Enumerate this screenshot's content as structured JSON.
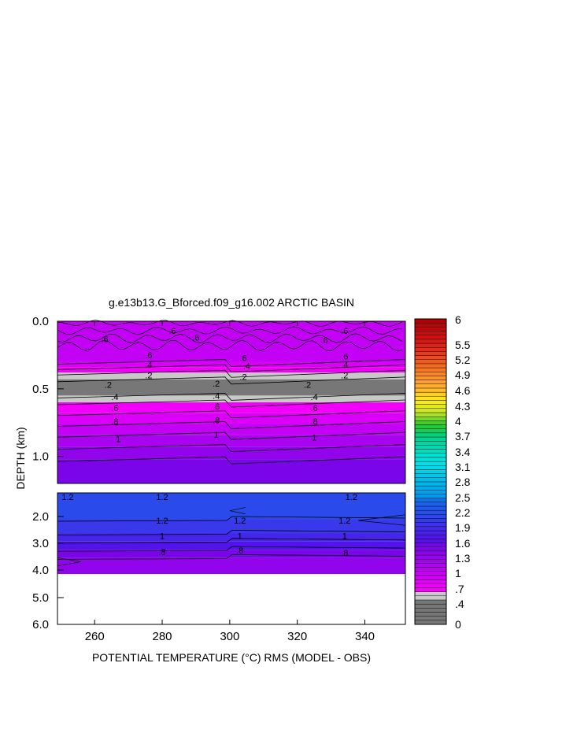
{
  "chart_data": {
    "type": "contour",
    "title": "g.e13b13.G_Bforced.f09_g16.002 ARCTIC BASIN",
    "xlabel": "POTENTIAL TEMPERATURE (°C) RMS (MODEL - OBS)",
    "ylabel": "DEPTH (km)",
    "xlim": [
      249,
      352
    ],
    "x_ticks": [
      260,
      280,
      300,
      320,
      340
    ],
    "upper_panel": {
      "ylim": [
        0.0,
        1.2
      ],
      "y_ticks": [
        {
          "v": 0.0,
          "label": "0.0"
        },
        {
          "v": 0.5,
          "label": "0.5"
        },
        {
          "v": 1.0,
          "label": "1.0"
        }
      ]
    },
    "lower_panel": {
      "depth_range_km": [
        1.2,
        6.0
      ],
      "y_ticks": [
        {
          "label": "2.0"
        },
        {
          "label": "3.0"
        },
        {
          "label": "4.0"
        },
        {
          "label": "5.0"
        },
        {
          "label": "6.0"
        }
      ],
      "data_max_depth_km": 4.1
    },
    "upper_bands": [
      {
        "top": 0.0,
        "bottom": 0.3,
        "value": 0.65
      },
      {
        "top": 0.3,
        "bottom": 0.34,
        "value": 0.55
      },
      {
        "top": 0.34,
        "bottom": 0.38,
        "value": 0.45
      },
      {
        "top": 0.38,
        "bottom": 0.43,
        "value": 0.35
      },
      {
        "top": 0.43,
        "bottom": 0.55,
        "value": 0.25
      },
      {
        "top": 0.55,
        "bottom": 0.6,
        "value": 0.35
      },
      {
        "top": 0.6,
        "bottom": 0.68,
        "value": 0.45
      },
      {
        "top": 0.68,
        "bottom": 0.76,
        "value": 0.55
      },
      {
        "top": 0.76,
        "bottom": 0.84,
        "value": 0.65
      },
      {
        "top": 0.84,
        "bottom": 0.93,
        "value": 0.75
      },
      {
        "top": 0.93,
        "bottom": 1.02,
        "value": 0.85
      },
      {
        "top": 1.02,
        "bottom": 1.2,
        "value": 0.95
      }
    ],
    "lower_bands": [
      {
        "top_frac": 0.0,
        "bottom_frac": 0.33,
        "value": 1.35
      },
      {
        "top_frac": 0.33,
        "bottom_frac": 0.5,
        "value": 1.25
      },
      {
        "top_frac": 0.5,
        "bottom_frac": 0.6,
        "value": 1.15
      },
      {
        "top_frac": 0.6,
        "bottom_frac": 0.7,
        "value": 1.05
      },
      {
        "top_frac": 0.7,
        "bottom_frac": 0.8,
        "value": 0.95
      },
      {
        "top_frac": 0.8,
        "bottom_frac": 1.0,
        "value": 0.85
      }
    ],
    "contour_labels": [
      {
        "x": 283,
        "d": 0.07,
        "text": ".6",
        "panel": "upper"
      },
      {
        "x": 263,
        "d": 0.13,
        "text": ".6",
        "panel": "upper"
      },
      {
        "x": 290,
        "d": 0.12,
        "text": ".6",
        "panel": "upper"
      },
      {
        "x": 328,
        "d": 0.14,
        "text": ".6",
        "panel": "upper"
      },
      {
        "x": 334,
        "d": 0.07,
        "text": ".6",
        "panel": "upper"
      },
      {
        "x": 276,
        "d": 0.25,
        "text": ".6",
        "panel": "upper"
      },
      {
        "x": 304,
        "d": 0.27,
        "text": ".6",
        "panel": "upper"
      },
      {
        "x": 334,
        "d": 0.26,
        "text": ".6",
        "panel": "upper"
      },
      {
        "x": 276,
        "d": 0.32,
        "text": ".4",
        "panel": "upper"
      },
      {
        "x": 305,
        "d": 0.33,
        "text": ".4",
        "panel": "upper"
      },
      {
        "x": 334,
        "d": 0.32,
        "text": ".4",
        "panel": "upper"
      },
      {
        "x": 276,
        "d": 0.4,
        "text": ".2",
        "panel": "upper"
      },
      {
        "x": 304,
        "d": 0.41,
        "text": ".2",
        "panel": "upper"
      },
      {
        "x": 334,
        "d": 0.4,
        "text": ".2",
        "panel": "upper"
      },
      {
        "x": 264,
        "d": 0.47,
        "text": ".2",
        "panel": "upper"
      },
      {
        "x": 296,
        "d": 0.46,
        "text": ".2",
        "panel": "upper"
      },
      {
        "x": 323,
        "d": 0.47,
        "text": ".2",
        "panel": "upper"
      },
      {
        "x": 266,
        "d": 0.56,
        "text": ".4",
        "panel": "upper"
      },
      {
        "x": 296,
        "d": 0.55,
        "text": ".4",
        "panel": "upper"
      },
      {
        "x": 325,
        "d": 0.56,
        "text": ".4",
        "panel": "upper"
      },
      {
        "x": 266,
        "d": 0.64,
        "text": ".6",
        "panel": "upper"
      },
      {
        "x": 296,
        "d": 0.63,
        "text": ".6",
        "panel": "upper"
      },
      {
        "x": 325,
        "d": 0.64,
        "text": ".6",
        "panel": "upper"
      },
      {
        "x": 266,
        "d": 0.74,
        "text": ".8",
        "panel": "upper"
      },
      {
        "x": 296,
        "d": 0.73,
        "text": ".8",
        "panel": "upper"
      },
      {
        "x": 325,
        "d": 0.74,
        "text": ".8",
        "panel": "upper"
      },
      {
        "x": 267,
        "d": 0.87,
        "text": "1",
        "panel": "upper"
      },
      {
        "x": 296,
        "d": 0.84,
        "text": "1",
        "panel": "upper"
      },
      {
        "x": 325,
        "d": 0.86,
        "text": "1",
        "panel": "upper"
      },
      {
        "x": 252,
        "f": 0.05,
        "text": "1.2",
        "panel": "lower"
      },
      {
        "x": 280,
        "f": 0.05,
        "text": "1.2",
        "panel": "lower"
      },
      {
        "x": 336,
        "f": 0.05,
        "text": "1.2",
        "panel": "lower"
      },
      {
        "x": 280,
        "f": 0.34,
        "text": "1.2",
        "panel": "lower"
      },
      {
        "x": 303,
        "f": 0.34,
        "text": "1.2",
        "panel": "lower"
      },
      {
        "x": 334,
        "f": 0.34,
        "text": "1.2",
        "panel": "lower"
      },
      {
        "x": 280,
        "f": 0.53,
        "text": "1",
        "panel": "lower"
      },
      {
        "x": 303,
        "f": 0.53,
        "text": "1",
        "panel": "lower"
      },
      {
        "x": 334,
        "f": 0.53,
        "text": "1",
        "panel": "lower"
      },
      {
        "x": 280,
        "f": 0.73,
        "text": ".8",
        "panel": "lower"
      },
      {
        "x": 303,
        "f": 0.71,
        "text": ".8",
        "panel": "lower"
      },
      {
        "x": 334,
        "f": 0.74,
        "text": ".8",
        "panel": "lower"
      }
    ],
    "colorbar": {
      "min": 0,
      "max": 6,
      "tick_labels": [
        "6",
        "5.5",
        "5.2",
        "4.9",
        "4.6",
        "4.3",
        "4",
        "3.7",
        "3.4",
        "3.1",
        "2.8",
        "2.5",
        "2.2",
        "1.9",
        "1.6",
        "1.3",
        "1",
        ".7",
        ".4",
        "0"
      ],
      "levels": [
        0,
        0.05,
        0.1,
        0.15,
        0.2,
        0.25,
        0.3,
        0.35,
        0.4,
        0.45,
        0.5,
        0.55,
        0.6,
        0.65,
        0.7,
        0.75,
        0.8,
        0.85,
        0.9,
        0.95,
        1.0,
        1.05,
        1.1,
        1.15,
        1.2,
        1.25,
        1.3,
        1.35,
        1.4,
        1.45,
        1.5,
        1.6,
        1.7,
        1.8,
        1.9,
        2.0,
        2.1,
        2.2,
        2.3,
        2.4,
        2.5,
        2.6,
        2.7,
        2.8,
        2.9,
        3.0,
        3.1,
        3.2,
        3.3,
        3.4,
        3.5,
        3.6,
        3.7,
        3.8,
        3.9,
        4.0,
        4.1,
        4.2,
        4.3,
        4.4,
        4.5,
        4.6,
        4.7,
        4.8,
        4.9,
        5.0,
        5.1,
        5.2,
        5.3,
        5.4,
        5.5,
        5.6,
        5.7,
        5.8,
        5.9,
        6.0
      ]
    }
  }
}
